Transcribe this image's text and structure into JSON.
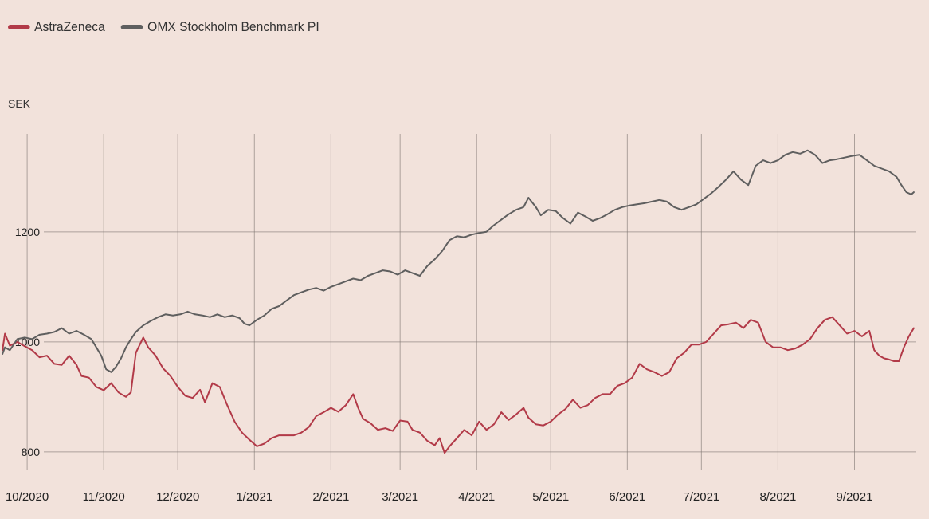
{
  "legend": {
    "items": [
      {
        "label": "AstraZeneca",
        "color": "#b23a48"
      },
      {
        "label": "OMX Stockholm Benchmark PI",
        "color": "#5f5f5f"
      }
    ]
  },
  "chart_data": {
    "type": "line",
    "title": "",
    "ylabel": "SEK",
    "xlabel": "",
    "ylim": [
      778,
      1378
    ],
    "yticks": [
      800,
      1000,
      1200
    ],
    "xlim": [
      "2020-09-20",
      "2021-09-26"
    ],
    "xticks": [
      {
        "date": "2020-10-01",
        "label": "10/2020"
      },
      {
        "date": "2020-11-01",
        "label": "11/2020"
      },
      {
        "date": "2020-12-01",
        "label": "12/2020"
      },
      {
        "date": "2021-01-01",
        "label": "1/2021"
      },
      {
        "date": "2021-02-01",
        "label": "2/2021"
      },
      {
        "date": "2021-03-01",
        "label": "3/2021"
      },
      {
        "date": "2021-04-01",
        "label": "4/2021"
      },
      {
        "date": "2021-05-01",
        "label": "5/2021"
      },
      {
        "date": "2021-06-01",
        "label": "6/2021"
      },
      {
        "date": "2021-07-01",
        "label": "7/2021"
      },
      {
        "date": "2021-08-01",
        "label": "8/2021"
      },
      {
        "date": "2021-09-01",
        "label": "9/2021"
      }
    ],
    "grid": true,
    "legend_position": "top-left",
    "series": [
      {
        "name": "AstraZeneca",
        "color": "#b23a48",
        "points": [
          [
            "2020-09-21",
            985
          ],
          [
            "2020-09-22",
            1015
          ],
          [
            "2020-09-24",
            993
          ],
          [
            "2020-09-27",
            1000
          ],
          [
            "2020-09-30",
            992
          ],
          [
            "2020-10-03",
            985
          ],
          [
            "2020-10-06",
            972
          ],
          [
            "2020-10-09",
            975
          ],
          [
            "2020-10-12",
            960
          ],
          [
            "2020-10-15",
            958
          ],
          [
            "2020-10-18",
            975
          ],
          [
            "2020-10-21",
            958
          ],
          [
            "2020-10-23",
            938
          ],
          [
            "2020-10-26",
            935
          ],
          [
            "2020-10-29",
            918
          ],
          [
            "2020-11-01",
            912
          ],
          [
            "2020-11-04",
            925
          ],
          [
            "2020-11-07",
            908
          ],
          [
            "2020-11-10",
            900
          ],
          [
            "2020-11-12",
            908
          ],
          [
            "2020-11-14",
            980
          ],
          [
            "2020-11-17",
            1008
          ],
          [
            "2020-11-19",
            990
          ],
          [
            "2020-11-22",
            975
          ],
          [
            "2020-11-25",
            952
          ],
          [
            "2020-11-28",
            938
          ],
          [
            "2020-12-01",
            918
          ],
          [
            "2020-12-04",
            902
          ],
          [
            "2020-12-07",
            898
          ],
          [
            "2020-12-10",
            913
          ],
          [
            "2020-12-12",
            890
          ],
          [
            "2020-12-15",
            925
          ],
          [
            "2020-12-18",
            918
          ],
          [
            "2020-12-21",
            885
          ],
          [
            "2020-12-24",
            855
          ],
          [
            "2020-12-27",
            835
          ],
          [
            "2020-12-30",
            822
          ],
          [
            "2021-01-02",
            810
          ],
          [
            "2021-01-05",
            815
          ],
          [
            "2021-01-08",
            825
          ],
          [
            "2021-01-11",
            830
          ],
          [
            "2021-01-14",
            830
          ],
          [
            "2021-01-17",
            830
          ],
          [
            "2021-01-20",
            835
          ],
          [
            "2021-01-23",
            845
          ],
          [
            "2021-01-26",
            865
          ],
          [
            "2021-01-29",
            872
          ],
          [
            "2021-02-01",
            880
          ],
          [
            "2021-02-04",
            873
          ],
          [
            "2021-02-07",
            885
          ],
          [
            "2021-02-10",
            905
          ],
          [
            "2021-02-12",
            880
          ],
          [
            "2021-02-14",
            860
          ],
          [
            "2021-02-17",
            852
          ],
          [
            "2021-02-20",
            840
          ],
          [
            "2021-02-23",
            843
          ],
          [
            "2021-02-26",
            838
          ],
          [
            "2021-03-01",
            857
          ],
          [
            "2021-03-04",
            855
          ],
          [
            "2021-03-06",
            840
          ],
          [
            "2021-03-09",
            835
          ],
          [
            "2021-03-12",
            820
          ],
          [
            "2021-03-15",
            812
          ],
          [
            "2021-03-17",
            825
          ],
          [
            "2021-03-19",
            798
          ],
          [
            "2021-03-21",
            810
          ],
          [
            "2021-03-24",
            825
          ],
          [
            "2021-03-27",
            840
          ],
          [
            "2021-03-30",
            830
          ],
          [
            "2021-04-02",
            855
          ],
          [
            "2021-04-05",
            840
          ],
          [
            "2021-04-08",
            850
          ],
          [
            "2021-04-11",
            872
          ],
          [
            "2021-04-14",
            858
          ],
          [
            "2021-04-17",
            868
          ],
          [
            "2021-04-20",
            880
          ],
          [
            "2021-04-22",
            862
          ],
          [
            "2021-04-25",
            850
          ],
          [
            "2021-04-28",
            848
          ],
          [
            "2021-05-01",
            855
          ],
          [
            "2021-05-04",
            868
          ],
          [
            "2021-05-07",
            878
          ],
          [
            "2021-05-10",
            895
          ],
          [
            "2021-05-13",
            880
          ],
          [
            "2021-05-16",
            885
          ],
          [
            "2021-05-19",
            898
          ],
          [
            "2021-05-22",
            905
          ],
          [
            "2021-05-25",
            905
          ],
          [
            "2021-05-28",
            920
          ],
          [
            "2021-05-31",
            925
          ],
          [
            "2021-06-03",
            935
          ],
          [
            "2021-06-06",
            960
          ],
          [
            "2021-06-09",
            950
          ],
          [
            "2021-06-12",
            945
          ],
          [
            "2021-06-15",
            938
          ],
          [
            "2021-06-18",
            945
          ],
          [
            "2021-06-21",
            970
          ],
          [
            "2021-06-24",
            980
          ],
          [
            "2021-06-27",
            995
          ],
          [
            "2021-06-30",
            995
          ],
          [
            "2021-07-03",
            1000
          ],
          [
            "2021-07-06",
            1015
          ],
          [
            "2021-07-09",
            1030
          ],
          [
            "2021-07-12",
            1032
          ],
          [
            "2021-07-15",
            1035
          ],
          [
            "2021-07-18",
            1025
          ],
          [
            "2021-07-21",
            1040
          ],
          [
            "2021-07-24",
            1035
          ],
          [
            "2021-07-27",
            1000
          ],
          [
            "2021-07-30",
            990
          ],
          [
            "2021-08-02",
            990
          ],
          [
            "2021-08-05",
            985
          ],
          [
            "2021-08-08",
            988
          ],
          [
            "2021-08-11",
            995
          ],
          [
            "2021-08-14",
            1005
          ],
          [
            "2021-08-17",
            1025
          ],
          [
            "2021-08-20",
            1040
          ],
          [
            "2021-08-23",
            1045
          ],
          [
            "2021-08-26",
            1030
          ],
          [
            "2021-08-29",
            1015
          ],
          [
            "2021-09-01",
            1020
          ],
          [
            "2021-09-04",
            1010
          ],
          [
            "2021-09-07",
            1020
          ],
          [
            "2021-09-09",
            985
          ],
          [
            "2021-09-11",
            975
          ],
          [
            "2021-09-13",
            970
          ],
          [
            "2021-09-15",
            968
          ],
          [
            "2021-09-17",
            965
          ],
          [
            "2021-09-19",
            965
          ],
          [
            "2021-09-21",
            990
          ],
          [
            "2021-09-23",
            1010
          ],
          [
            "2021-09-25",
            1025
          ]
        ]
      },
      {
        "name": "OMX Stockholm Benchmark PI",
        "color": "#5f5f5f",
        "points": [
          [
            "2020-09-21",
            978
          ],
          [
            "2020-09-22",
            990
          ],
          [
            "2020-09-24",
            985
          ],
          [
            "2020-09-27",
            1005
          ],
          [
            "2020-09-30",
            1008
          ],
          [
            "2020-10-03",
            1005
          ],
          [
            "2020-10-06",
            1013
          ],
          [
            "2020-10-09",
            1015
          ],
          [
            "2020-10-12",
            1018
          ],
          [
            "2020-10-15",
            1025
          ],
          [
            "2020-10-18",
            1015
          ],
          [
            "2020-10-21",
            1020
          ],
          [
            "2020-10-24",
            1013
          ],
          [
            "2020-10-27",
            1005
          ],
          [
            "2020-10-29",
            990
          ],
          [
            "2020-10-31",
            975
          ],
          [
            "2020-11-02",
            950
          ],
          [
            "2020-11-04",
            945
          ],
          [
            "2020-11-06",
            955
          ],
          [
            "2020-11-08",
            970
          ],
          [
            "2020-11-10",
            990
          ],
          [
            "2020-11-12",
            1005
          ],
          [
            "2020-11-14",
            1018
          ],
          [
            "2020-11-17",
            1030
          ],
          [
            "2020-11-20",
            1038
          ],
          [
            "2020-11-23",
            1045
          ],
          [
            "2020-11-26",
            1050
          ],
          [
            "2020-11-29",
            1048
          ],
          [
            "2020-12-02",
            1050
          ],
          [
            "2020-12-05",
            1055
          ],
          [
            "2020-12-08",
            1050
          ],
          [
            "2020-12-11",
            1048
          ],
          [
            "2020-12-14",
            1045
          ],
          [
            "2020-12-17",
            1050
          ],
          [
            "2020-12-20",
            1045
          ],
          [
            "2020-12-23",
            1048
          ],
          [
            "2020-12-26",
            1043
          ],
          [
            "2020-12-28",
            1033
          ],
          [
            "2020-12-30",
            1030
          ],
          [
            "2021-01-02",
            1040
          ],
          [
            "2021-01-05",
            1048
          ],
          [
            "2021-01-08",
            1060
          ],
          [
            "2021-01-11",
            1065
          ],
          [
            "2021-01-14",
            1075
          ],
          [
            "2021-01-17",
            1085
          ],
          [
            "2021-01-20",
            1090
          ],
          [
            "2021-01-23",
            1095
          ],
          [
            "2021-01-26",
            1098
          ],
          [
            "2021-01-29",
            1093
          ],
          [
            "2021-02-01",
            1100
          ],
          [
            "2021-02-04",
            1105
          ],
          [
            "2021-02-07",
            1110
          ],
          [
            "2021-02-10",
            1115
          ],
          [
            "2021-02-13",
            1112
          ],
          [
            "2021-02-16",
            1120
          ],
          [
            "2021-02-19",
            1125
          ],
          [
            "2021-02-22",
            1130
          ],
          [
            "2021-02-25",
            1128
          ],
          [
            "2021-02-28",
            1122
          ],
          [
            "2021-03-03",
            1130
          ],
          [
            "2021-03-06",
            1125
          ],
          [
            "2021-03-09",
            1120
          ],
          [
            "2021-03-12",
            1138
          ],
          [
            "2021-03-15",
            1150
          ],
          [
            "2021-03-18",
            1165
          ],
          [
            "2021-03-21",
            1185
          ],
          [
            "2021-03-24",
            1192
          ],
          [
            "2021-03-27",
            1190
          ],
          [
            "2021-03-30",
            1195
          ],
          [
            "2021-04-02",
            1198
          ],
          [
            "2021-04-05",
            1200
          ],
          [
            "2021-04-08",
            1212
          ],
          [
            "2021-04-11",
            1222
          ],
          [
            "2021-04-14",
            1232
          ],
          [
            "2021-04-17",
            1240
          ],
          [
            "2021-04-20",
            1245
          ],
          [
            "2021-04-22",
            1262
          ],
          [
            "2021-04-25",
            1245
          ],
          [
            "2021-04-27",
            1230
          ],
          [
            "2021-04-30",
            1240
          ],
          [
            "2021-05-03",
            1238
          ],
          [
            "2021-05-06",
            1225
          ],
          [
            "2021-05-09",
            1215
          ],
          [
            "2021-05-12",
            1235
          ],
          [
            "2021-05-15",
            1228
          ],
          [
            "2021-05-18",
            1220
          ],
          [
            "2021-05-21",
            1225
          ],
          [
            "2021-05-24",
            1232
          ],
          [
            "2021-05-27",
            1240
          ],
          [
            "2021-05-30",
            1245
          ],
          [
            "2021-06-02",
            1248
          ],
          [
            "2021-06-05",
            1250
          ],
          [
            "2021-06-08",
            1252
          ],
          [
            "2021-06-11",
            1255
          ],
          [
            "2021-06-14",
            1258
          ],
          [
            "2021-06-17",
            1255
          ],
          [
            "2021-06-20",
            1245
          ],
          [
            "2021-06-23",
            1240
          ],
          [
            "2021-06-26",
            1245
          ],
          [
            "2021-06-29",
            1250
          ],
          [
            "2021-07-02",
            1260
          ],
          [
            "2021-07-05",
            1270
          ],
          [
            "2021-07-08",
            1282
          ],
          [
            "2021-07-11",
            1295
          ],
          [
            "2021-07-14",
            1310
          ],
          [
            "2021-07-17",
            1295
          ],
          [
            "2021-07-20",
            1285
          ],
          [
            "2021-07-23",
            1320
          ],
          [
            "2021-07-26",
            1330
          ],
          [
            "2021-07-29",
            1325
          ],
          [
            "2021-08-01",
            1330
          ],
          [
            "2021-08-04",
            1340
          ],
          [
            "2021-08-07",
            1345
          ],
          [
            "2021-08-10",
            1342
          ],
          [
            "2021-08-13",
            1348
          ],
          [
            "2021-08-16",
            1340
          ],
          [
            "2021-08-19",
            1325
          ],
          [
            "2021-08-22",
            1330
          ],
          [
            "2021-08-25",
            1332
          ],
          [
            "2021-08-28",
            1335
          ],
          [
            "2021-08-31",
            1338
          ],
          [
            "2021-09-03",
            1340
          ],
          [
            "2021-09-06",
            1330
          ],
          [
            "2021-09-09",
            1320
          ],
          [
            "2021-09-12",
            1315
          ],
          [
            "2021-09-15",
            1310
          ],
          [
            "2021-09-18",
            1300
          ],
          [
            "2021-09-20",
            1285
          ],
          [
            "2021-09-22",
            1272
          ],
          [
            "2021-09-24",
            1268
          ],
          [
            "2021-09-25",
            1272
          ]
        ]
      }
    ]
  }
}
